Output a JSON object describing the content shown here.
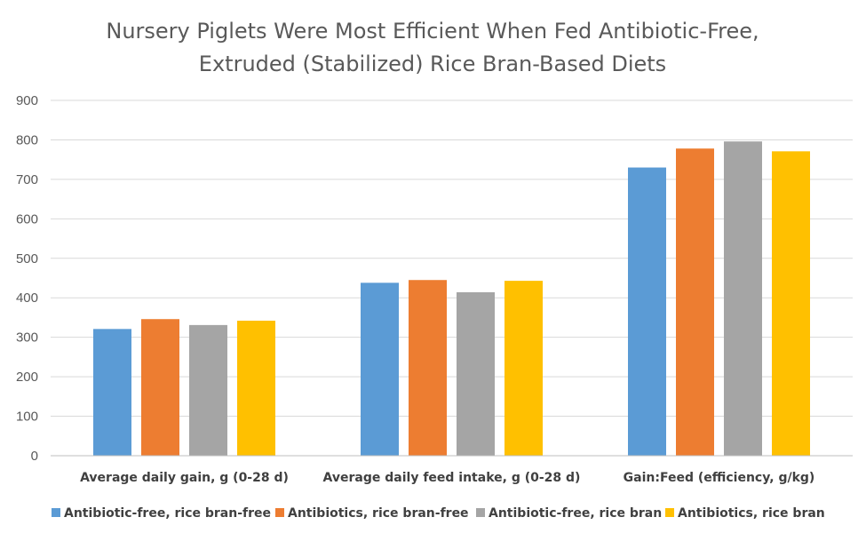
{
  "chart_data": {
    "type": "bar",
    "title_lines": [
      "Nursery Piglets Were Most Efficient When Fed Antibiotic-Free,",
      "Extruded (Stabilized) Rice Bran-Based Diets"
    ],
    "categories": [
      "Average daily gain, g (0-28 d)",
      "Average daily feed intake, g (0-28 d)",
      "Gain:Feed (efficiency, g/kg)"
    ],
    "series": [
      {
        "name": "Antibiotic-free, rice bran-free",
        "color": "#5b9bd5",
        "values": [
          321,
          438,
          730
        ]
      },
      {
        "name": "Antibiotics, rice bran-free",
        "color": "#ed7d31",
        "values": [
          346,
          445,
          778
        ]
      },
      {
        "name": "Antibiotic-free, rice bran",
        "color": "#a5a5a5",
        "values": [
          331,
          414,
          796
        ]
      },
      {
        "name": "Antibiotics, rice bran",
        "color": "#ffc000",
        "values": [
          342,
          443,
          771
        ]
      }
    ],
    "ylim": [
      0,
      900
    ],
    "yticks": [
      "0",
      "100",
      "200",
      "300",
      "400",
      "500",
      "600",
      "700",
      "800",
      "900"
    ],
    "grid": true,
    "legend_position": "bottom"
  }
}
